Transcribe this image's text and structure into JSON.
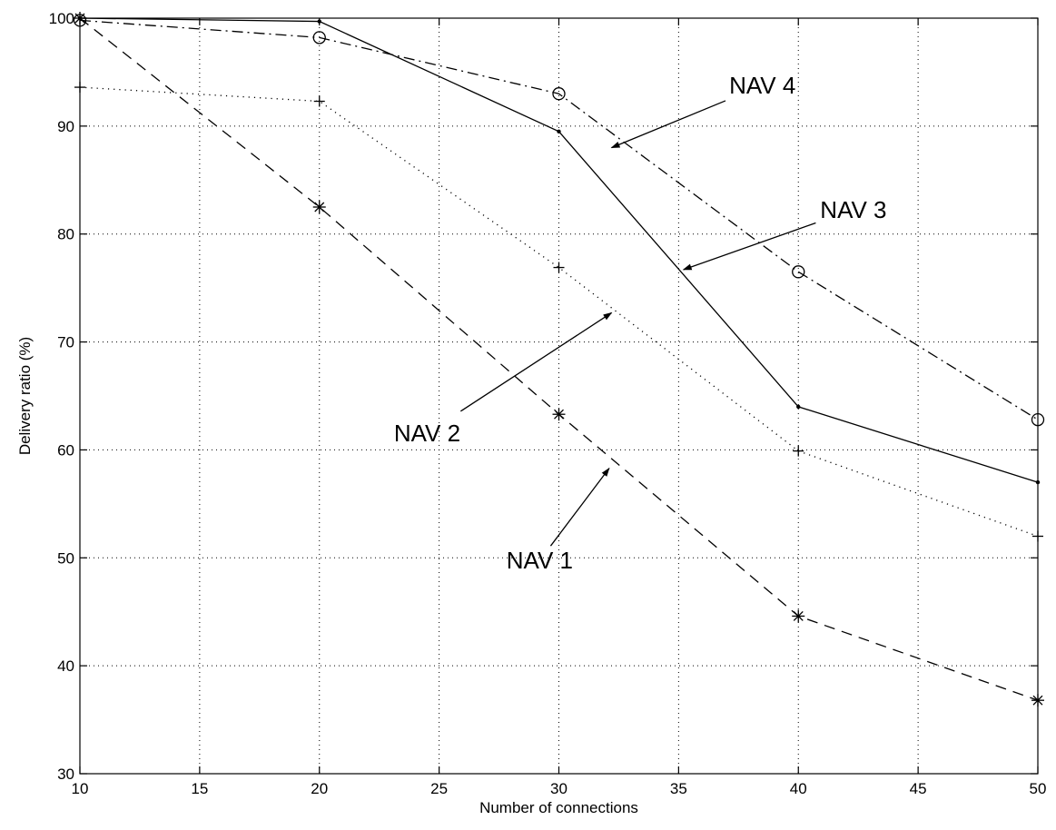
{
  "chart_data": {
    "type": "line",
    "title": "",
    "xlabel": "Number of connections",
    "ylabel": "Delivery ratio (%)",
    "xlim": [
      10,
      50
    ],
    "ylim": [
      30,
      100
    ],
    "xticks": [
      10,
      15,
      20,
      25,
      30,
      35,
      40,
      45,
      50
    ],
    "yticks": [
      30,
      40,
      50,
      60,
      70,
      80,
      90,
      100
    ],
    "grid": true,
    "legend": "none",
    "series": [
      {
        "name": "NAV 1",
        "x": [
          10,
          20,
          30,
          40,
          50
        ],
        "values": [
          100,
          82.5,
          63.3,
          44.6,
          36.8
        ],
        "line_style": "dashed",
        "marker": "asterisk"
      },
      {
        "name": "NAV 2",
        "x": [
          10,
          20,
          30,
          40,
          50
        ],
        "values": [
          93.6,
          92.3,
          76.9,
          59.9,
          52.0
        ],
        "line_style": "dotted",
        "marker": "plus"
      },
      {
        "name": "NAV 3",
        "x": [
          10,
          20,
          30,
          40,
          50
        ],
        "values": [
          100,
          99.7,
          89.5,
          64.0,
          57.0
        ],
        "line_style": "solid",
        "marker": "point"
      },
      {
        "name": "NAV 4",
        "x": [
          10,
          20,
          30,
          40,
          50
        ],
        "values": [
          99.8,
          98.2,
          93.0,
          76.5,
          62.8
        ],
        "line_style": "dashdot",
        "marker": "circle"
      }
    ],
    "annotations": [
      {
        "text": "NAV 4",
        "points_to": [
          32.2,
          88.0
        ],
        "text_at": [
          38.5,
          93.0
        ]
      },
      {
        "text": "NAV 3",
        "points_to": [
          35.2,
          76.7
        ],
        "text_at": [
          42.3,
          81.5
        ]
      },
      {
        "text": "NAV 2",
        "points_to": [
          32.2,
          72.7
        ],
        "text_at": [
          24.5,
          60.8
        ]
      },
      {
        "text": "NAV 1",
        "points_to": [
          32.1,
          58.3
        ],
        "text_at": [
          29.2,
          49.0
        ]
      }
    ]
  }
}
